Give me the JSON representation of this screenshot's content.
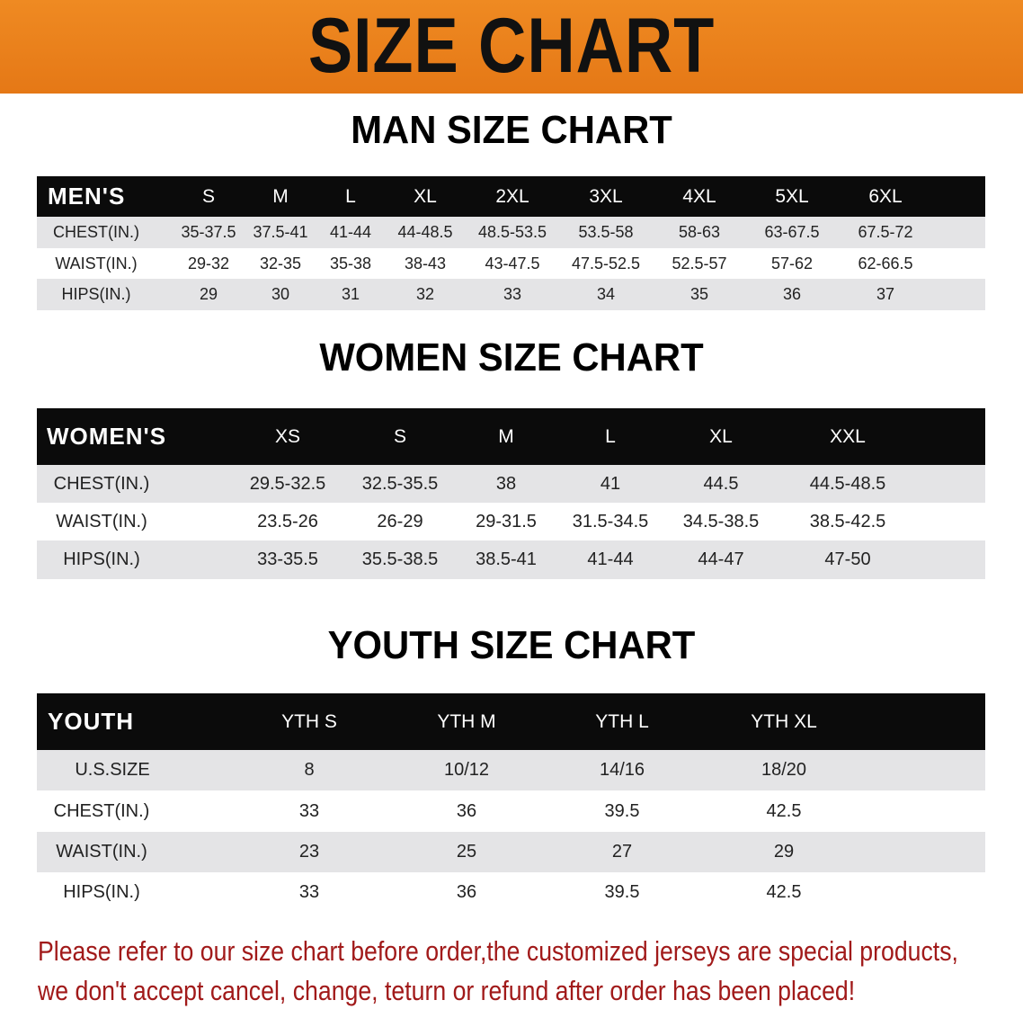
{
  "banner": {
    "title": "SIZE CHART",
    "color": "#e8801c"
  },
  "tables": [
    {
      "title": "MAN SIZE CHART",
      "header": [
        "MEN'S",
        "S",
        "M",
        "L",
        "XL",
        "2XL",
        "3XL",
        "4XL",
        "5XL",
        "6XL"
      ],
      "rows": [
        [
          "CHEST(IN.)",
          "35-37.5",
          "37.5-41",
          "41-44",
          "44-48.5",
          "48.5-53.5",
          "53.5-58",
          "58-63",
          "63-67.5",
          "67.5-72"
        ],
        [
          "WAIST(IN.)",
          "29-32",
          "32-35",
          "35-38",
          "38-43",
          "43-47.5",
          "47.5-52.5",
          "52.5-57",
          "57-62",
          "62-66.5"
        ],
        [
          "HIPS(IN.)",
          "29",
          "30",
          "31",
          "32",
          "33",
          "34",
          "35",
          "36",
          "37"
        ]
      ]
    },
    {
      "title": "WOMEN SIZE CHART",
      "header": [
        "WOMEN'S",
        "XS",
        "S",
        "M",
        "L",
        "XL",
        "XXL"
      ],
      "rows": [
        [
          "CHEST(IN.)",
          "29.5-32.5",
          "32.5-35.5",
          "38",
          "41",
          "44.5",
          "44.5-48.5"
        ],
        [
          "WAIST(IN.)",
          "23.5-26",
          "26-29",
          "29-31.5",
          "31.5-34.5",
          "34.5-38.5",
          "38.5-42.5"
        ],
        [
          "HIPS(IN.)",
          "33-35.5",
          "35.5-38.5",
          "38.5-41",
          "41-44",
          "44-47",
          "47-50"
        ]
      ]
    },
    {
      "title": "YOUTH SIZE CHART",
      "header": [
        "YOUTH",
        "YTH S",
        "YTH M",
        "YTH L",
        "YTH XL"
      ],
      "rows": [
        [
          "U.S.SIZE",
          "8",
          "10/12",
          "14/16",
          "18/20"
        ],
        [
          "CHEST(IN.)",
          "33",
          "36",
          "39.5",
          "42.5"
        ],
        [
          "WAIST(IN.)",
          "23",
          "25",
          "27",
          "29"
        ],
        [
          "HIPS(IN.)",
          "33",
          "36",
          "39.5",
          "42.5"
        ]
      ]
    }
  ],
  "note": {
    "line1": "Please refer to our size chart before order,the customized jerseys are special products,",
    "line2": "we don't accept cancel, change, teturn or refund after order has been placed!",
    "color": "#a11a1a"
  }
}
